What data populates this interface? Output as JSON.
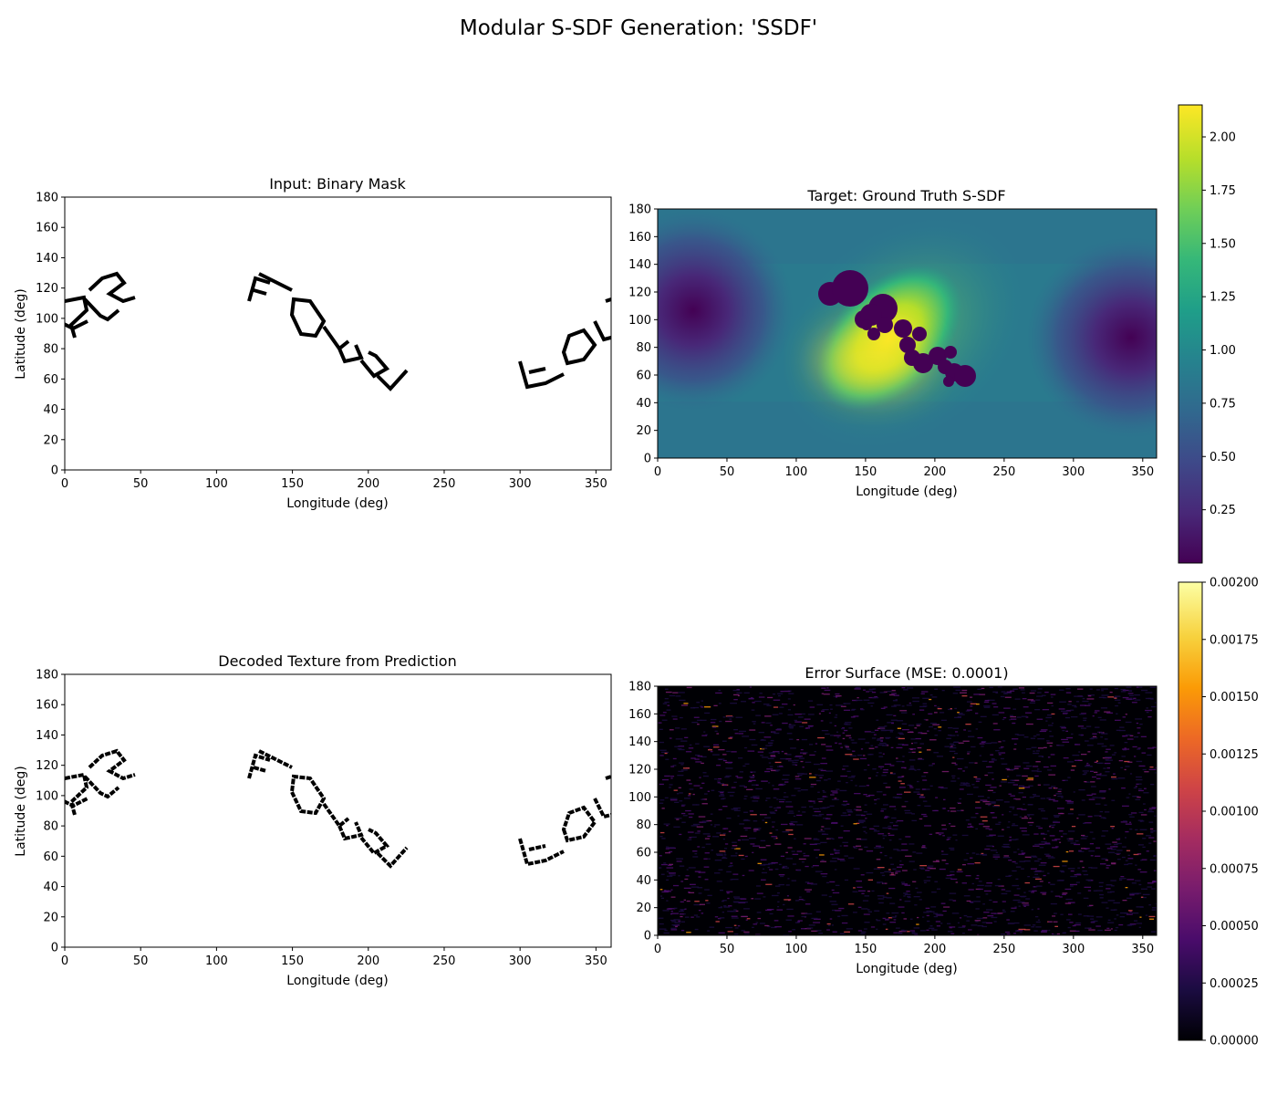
{
  "figure": {
    "title": "Modular S-SDF Generation: 'SSDF'"
  },
  "colors": {
    "mask_ink": "#000000",
    "background": "#ffffff",
    "viridis": [
      "#440154",
      "#482878",
      "#3e4989",
      "#31688e",
      "#26828e",
      "#1f9e89",
      "#35b779",
      "#6ece58",
      "#b5de2b",
      "#fde725"
    ],
    "inferno": [
      "#000004",
      "#1b0c41",
      "#4a0c6b",
      "#781c6d",
      "#a52c60",
      "#cf4446",
      "#ed6925",
      "#fb9b06",
      "#f7d13d",
      "#fcffa4"
    ]
  },
  "chart_data": [
    {
      "id": "mask",
      "type": "heatmap",
      "title": "Input: Binary Mask",
      "xlabel": "Longitude (deg)",
      "ylabel": "Latitude (deg)",
      "xlim": [
        0,
        360
      ],
      "ylim": [
        0,
        180
      ],
      "xticks": [
        "0",
        "50",
        "100",
        "150",
        "200",
        "250",
        "300",
        "350"
      ],
      "yticks": [
        "0",
        "20",
        "40",
        "60",
        "80",
        "100",
        "120",
        "140",
        "160",
        "180"
      ],
      "colormap": "gray",
      "content": "text 'SSDF' rendered as binary mask wrapped across longitude"
    },
    {
      "id": "target",
      "type": "heatmap",
      "title": "Target: Ground Truth S-SDF",
      "xlabel": "Longitude (deg)",
      "ylabel": "Latitude (deg)",
      "xlim": [
        0,
        360
      ],
      "ylim": [
        0,
        180
      ],
      "xticks": [
        "0",
        "50",
        "100",
        "150",
        "200",
        "250",
        "300",
        "350"
      ],
      "yticks": [
        "0",
        "20",
        "40",
        "60",
        "80",
        "100",
        "120",
        "140",
        "160",
        "180"
      ],
      "colormap": "viridis",
      "colorbar": {
        "range": [
          0.0,
          2.15
        ],
        "ticks": [
          "0.25",
          "0.50",
          "0.75",
          "1.00",
          "1.25",
          "1.50",
          "1.75",
          "2.00"
        ],
        "tick_values": [
          0.25,
          0.5,
          0.75,
          1.0,
          1.25,
          1.5,
          1.75,
          2.0
        ]
      }
    },
    {
      "id": "decoded",
      "type": "heatmap",
      "title": "Decoded Texture from Prediction",
      "xlabel": "Longitude (deg)",
      "ylabel": "Latitude (deg)",
      "xlim": [
        0,
        360
      ],
      "ylim": [
        0,
        180
      ],
      "xticks": [
        "0",
        "50",
        "100",
        "150",
        "200",
        "250",
        "300",
        "350"
      ],
      "yticks": [
        "0",
        "20",
        "40",
        "60",
        "80",
        "100",
        "120",
        "140",
        "160",
        "180"
      ],
      "colormap": "gray"
    },
    {
      "id": "error",
      "type": "heatmap",
      "title": "Error Surface (MSE: 0.0001)",
      "xlabel": "Longitude (deg)",
      "ylabel": "",
      "xlim": [
        0,
        360
      ],
      "ylim": [
        0,
        180
      ],
      "xticks": [
        "0",
        "50",
        "100",
        "150",
        "200",
        "250",
        "300",
        "350"
      ],
      "yticks": [
        "0",
        "20",
        "40",
        "60",
        "80",
        "100",
        "120",
        "140",
        "160",
        "180"
      ],
      "colormap": "inferno",
      "mse": 0.0001,
      "colorbar": {
        "range": [
          0.0,
          0.002
        ],
        "ticks": [
          "0.00000",
          "0.00025",
          "0.00050",
          "0.00075",
          "0.00100",
          "0.00125",
          "0.00150",
          "0.00175",
          "0.00200"
        ],
        "tick_values": [
          0.0,
          0.00025,
          0.0005,
          0.00075,
          0.001,
          0.00125,
          0.0015,
          0.00175,
          0.002
        ]
      }
    }
  ]
}
